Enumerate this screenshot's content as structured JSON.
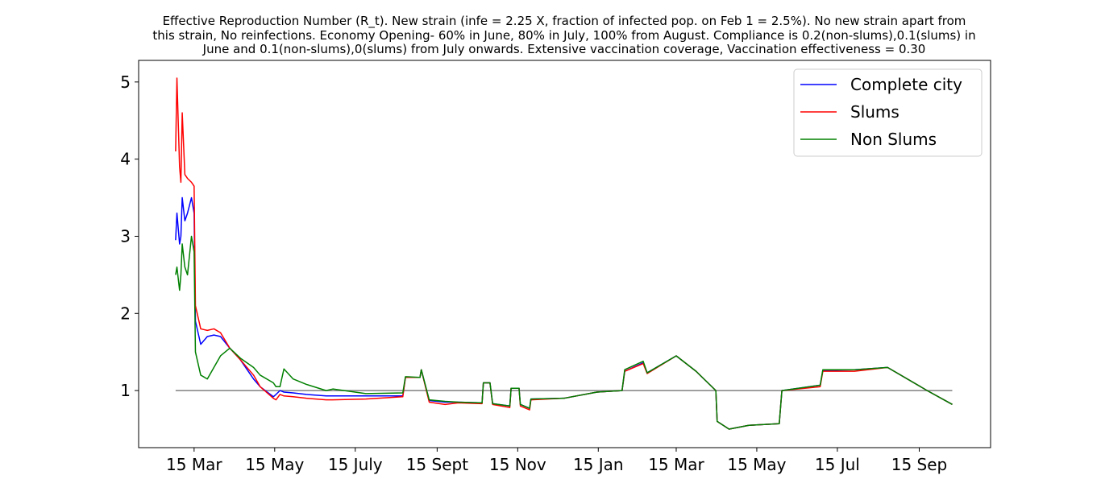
{
  "chart_data": {
    "type": "line",
    "title": [
      "Effective Reproduction Number (R_t). New strain (infe = 2.25 X, fraction of infected pop. on Feb 1 = 2.5%). No new strain apart from",
      "this strain, No reinfections. Economy Opening- 60% in June, 80% in July, 100% from August. Compliance is 0.2(non-slums),0.1(slums) in",
      "June and 0.1(non-slums),0(slums) from July onwards. Extensive vaccination coverage, Vaccination effectiveness = 0.30"
    ],
    "x": [
      -14,
      -13,
      -11,
      -10,
      -9,
      -7,
      -5,
      -2,
      0,
      1,
      5,
      10,
      15,
      20,
      27,
      35,
      45,
      50,
      60,
      62,
      65,
      68,
      75,
      85,
      100,
      105,
      130,
      158,
      160,
      171,
      172,
      178,
      190,
      200,
      218,
      219,
      224,
      226,
      239,
      240,
      246,
      247,
      254,
      255,
      280,
      305,
      324,
      326,
      340,
      343,
      365,
      380,
      395,
      396,
      405,
      420,
      443,
      445,
      474,
      476,
      500,
      525,
      555,
      574
    ],
    "series": [
      {
        "name": "Complete city",
        "color": "#0000ff",
        "values": [
          2.95,
          3.3,
          2.9,
          3.0,
          3.5,
          3.2,
          3.3,
          3.5,
          3.3,
          1.9,
          1.6,
          1.7,
          1.72,
          1.7,
          1.55,
          1.4,
          1.15,
          1.05,
          0.92,
          0.95,
          1.0,
          0.98,
          0.97,
          0.95,
          0.93,
          0.93,
          0.93,
          0.93,
          1.17,
          1.17,
          1.27,
          0.87,
          0.85,
          0.85,
          0.84,
          1.1,
          1.1,
          0.83,
          0.8,
          1.03,
          1.03,
          0.82,
          0.77,
          0.89,
          0.9,
          0.98,
          1.0,
          1.25,
          1.36,
          1.23,
          1.45,
          1.25,
          1.0,
          0.6,
          0.5,
          0.55,
          0.57,
          1.0,
          1.07,
          1.26,
          1.27,
          1.3,
          1.0,
          0.82
        ]
      },
      {
        "name": "Slums",
        "color": "#ff0000",
        "values": [
          4.1,
          5.05,
          3.9,
          3.7,
          4.6,
          3.8,
          3.75,
          3.7,
          3.65,
          2.1,
          1.8,
          1.78,
          1.8,
          1.75,
          1.55,
          1.4,
          1.2,
          1.05,
          0.9,
          0.88,
          0.95,
          0.93,
          0.92,
          0.9,
          0.88,
          0.88,
          0.89,
          0.92,
          1.17,
          1.17,
          1.27,
          0.85,
          0.82,
          0.84,
          0.83,
          1.1,
          1.1,
          0.82,
          0.78,
          1.03,
          1.03,
          0.8,
          0.75,
          0.88,
          0.9,
          0.98,
          1.0,
          1.25,
          1.35,
          1.22,
          1.45,
          1.25,
          1.0,
          0.6,
          0.5,
          0.55,
          0.57,
          1.0,
          1.05,
          1.25,
          1.25,
          1.3,
          1.0,
          0.82
        ]
      },
      {
        "name": "Non Slums",
        "color": "#008000",
        "values": [
          2.5,
          2.6,
          2.3,
          2.5,
          2.9,
          2.6,
          2.5,
          3.0,
          2.8,
          1.5,
          1.2,
          1.15,
          1.3,
          1.45,
          1.55,
          1.42,
          1.3,
          1.2,
          1.1,
          1.05,
          1.05,
          1.28,
          1.15,
          1.08,
          1.0,
          1.02,
          0.96,
          0.97,
          1.18,
          1.17,
          1.27,
          0.88,
          0.86,
          0.85,
          0.84,
          1.1,
          1.1,
          0.83,
          0.8,
          1.03,
          1.03,
          0.82,
          0.77,
          0.89,
          0.9,
          0.98,
          1.0,
          1.27,
          1.38,
          1.23,
          1.45,
          1.25,
          1.0,
          0.6,
          0.5,
          0.55,
          0.57,
          1.0,
          1.07,
          1.27,
          1.27,
          1.3,
          1.0,
          0.82
        ]
      }
    ],
    "reference_line": {
      "y": 1,
      "color": "#808080"
    },
    "xlim": [
      -42,
      603
    ],
    "xticks": [
      {
        "value": 0,
        "label": "15 Mar"
      },
      {
        "value": 61,
        "label": "15 May"
      },
      {
        "value": 122,
        "label": "15 July"
      },
      {
        "value": 184,
        "label": "15 Sept"
      },
      {
        "value": 245,
        "label": "15 Nov"
      },
      {
        "value": 306,
        "label": "15 Jan"
      },
      {
        "value": 365,
        "label": "15 Mar"
      },
      {
        "value": 426,
        "label": "15 May"
      },
      {
        "value": 487,
        "label": "15 Jul"
      },
      {
        "value": 549,
        "label": "15 Sep"
      }
    ],
    "ylim": [
      0.26,
      5.28
    ],
    "yticks": [
      1,
      2,
      3,
      4,
      5
    ],
    "grid": false,
    "legend": "upper right"
  }
}
